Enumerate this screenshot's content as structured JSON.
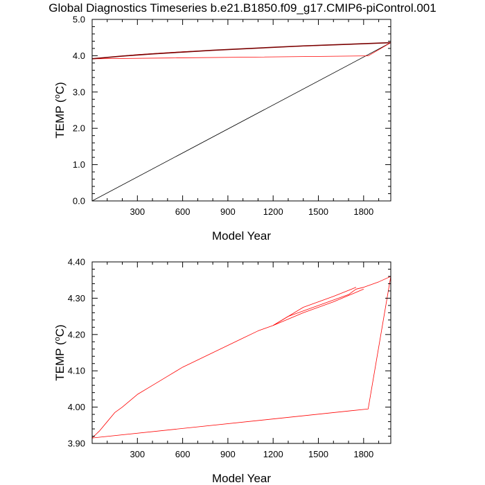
{
  "title": "Global Diagnostics Timeseries b.e21.B1850.f09_g17.CMIP6-piControl.001",
  "colors": {
    "series_red": "#ff0000",
    "series_darkred": "#7a0000",
    "ref_line": "#000000",
    "axis": "#000000"
  },
  "chart_data": [
    {
      "type": "line",
      "name": "top-panel",
      "xlabel": "Model Year",
      "ylabel": "TEMP (oC)",
      "xlim": [
        0,
        1980
      ],
      "ylim": [
        0.0,
        5.0
      ],
      "xticks": [
        300,
        600,
        900,
        1200,
        1500,
        1800
      ],
      "xtick_labels": [
        "300",
        "600",
        "900",
        "1200",
        "1500",
        "1800"
      ],
      "yticks": [
        0,
        1,
        2,
        3,
        4,
        5
      ],
      "ytick_labels": [
        "0.0",
        "1.0",
        "2.0",
        "3.0",
        "4.0",
        "5.0"
      ],
      "series": [
        {
          "name": "black",
          "color": "#000000",
          "x": [
            0,
            1980
          ],
          "y": [
            0.0,
            4.36
          ]
        },
        {
          "name": "red",
          "color": "#ff0000",
          "x": [
            0,
            300,
            600,
            900,
            1200,
            1500,
            1800,
            1980,
            1830,
            0
          ],
          "y": [
            3.915,
            4.03,
            4.11,
            4.17,
            4.23,
            4.28,
            4.33,
            4.36,
            3.995,
            3.915
          ]
        },
        {
          "name": "dark-red",
          "color": "#7a0000",
          "x": [
            0,
            200,
            400,
            600,
            800,
            1000,
            1200,
            1400,
            1600,
            1800,
            1980
          ],
          "y": [
            3.915,
            3.99,
            4.05,
            4.1,
            4.15,
            4.19,
            4.23,
            4.27,
            4.3,
            4.33,
            4.36
          ]
        }
      ]
    },
    {
      "type": "line",
      "name": "bottom-panel",
      "xlabel": "Model Year",
      "ylabel": "TEMP (oC)",
      "xlim": [
        0,
        1980
      ],
      "ylim": [
        3.9,
        4.4
      ],
      "xticks": [
        300,
        600,
        900,
        1200,
        1500,
        1800
      ],
      "xtick_labels": [
        "300",
        "600",
        "900",
        "1200",
        "1500",
        "1800"
      ],
      "yticks": [
        3.9,
        4.0,
        4.1,
        4.2,
        4.3,
        4.4
      ],
      "ytick_labels": [
        "3.90",
        "4.00",
        "4.10",
        "4.20",
        "4.30",
        "4.40"
      ],
      "series": [
        {
          "name": "red",
          "color": "#ff0000",
          "x": [
            0,
            50,
            100,
            150,
            200,
            300,
            400,
            500,
            600,
            700,
            800,
            900,
            1000,
            1100,
            1200,
            1300,
            1400,
            1500,
            1600,
            1700,
            1750,
            1800,
            1900,
            1980,
            1830,
            0
          ],
          "y": [
            3.915,
            3.935,
            3.96,
            3.985,
            4.0,
            4.035,
            4.06,
            4.085,
            4.11,
            4.13,
            4.15,
            4.17,
            4.19,
            4.21,
            4.225,
            4.25,
            4.265,
            4.28,
            4.295,
            4.31,
            4.325,
            4.33,
            4.345,
            4.36,
            3.995,
            3.915
          ]
        },
        {
          "name": "red-upper",
          "color": "#ff0000",
          "x": [
            1200,
            1400,
            1600,
            1750
          ],
          "y": [
            4.225,
            4.275,
            4.305,
            4.33
          ]
        },
        {
          "name": "red-lower",
          "color": "#ff0000",
          "x": [
            1200,
            1400,
            1600,
            1800
          ],
          "y": [
            4.225,
            4.26,
            4.29,
            4.325
          ]
        }
      ]
    }
  ]
}
